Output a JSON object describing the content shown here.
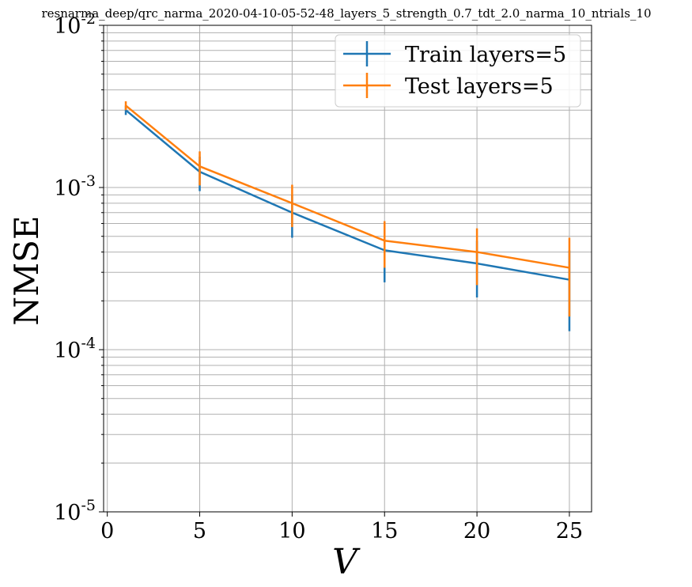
{
  "chart_data": {
    "type": "line",
    "title": "resnarma_deep/qrc_narma_2020-04-10-05-52-48_layers_5_strength_0.7_tdt_2.0_narma_10_ntrials_10",
    "xlabel": "V",
    "ylabel": "NMSE",
    "xlim": [
      -0.2,
      26.2
    ],
    "ylim": [
      1e-05,
      0.01
    ],
    "yscale": "log",
    "xticks": [
      0,
      5,
      10,
      15,
      20,
      25
    ],
    "xtick_labels": [
      "0",
      "5",
      "10",
      "15",
      "20",
      "25"
    ],
    "ytick_labels": [
      {
        "base": "10",
        "exp": "-2",
        "value": 0.01
      },
      {
        "base": "10",
        "exp": "-3",
        "value": 0.001
      },
      {
        "base": "10",
        "exp": "-4",
        "value": 0.0001
      },
      {
        "base": "10",
        "exp": "-5",
        "value": 1e-05
      }
    ],
    "grid": true,
    "legend_position": "top-right",
    "x": [
      1,
      5,
      10,
      15,
      20,
      25
    ],
    "series": [
      {
        "name": "Train layers=5",
        "color": "#1f77b4",
        "values": [
          0.003,
          0.00125,
          0.0007,
          0.00041,
          0.00034,
          0.00027
        ],
        "err_low": [
          0.0028,
          0.00095,
          0.00049,
          0.00026,
          0.00021,
          0.00013
        ],
        "err_high": [
          0.0032,
          0.00155,
          0.0009,
          0.00056,
          0.00047,
          0.00041
        ]
      },
      {
        "name": "Test layers=5",
        "color": "#ff7f0e",
        "values": [
          0.0032,
          0.00135,
          0.0008,
          0.00047,
          0.0004,
          0.00032
        ],
        "err_low": [
          0.003,
          0.00103,
          0.00057,
          0.00032,
          0.00025,
          0.00016
        ],
        "err_high": [
          0.0034,
          0.00167,
          0.00104,
          0.00062,
          0.00056,
          0.00049
        ]
      }
    ]
  }
}
